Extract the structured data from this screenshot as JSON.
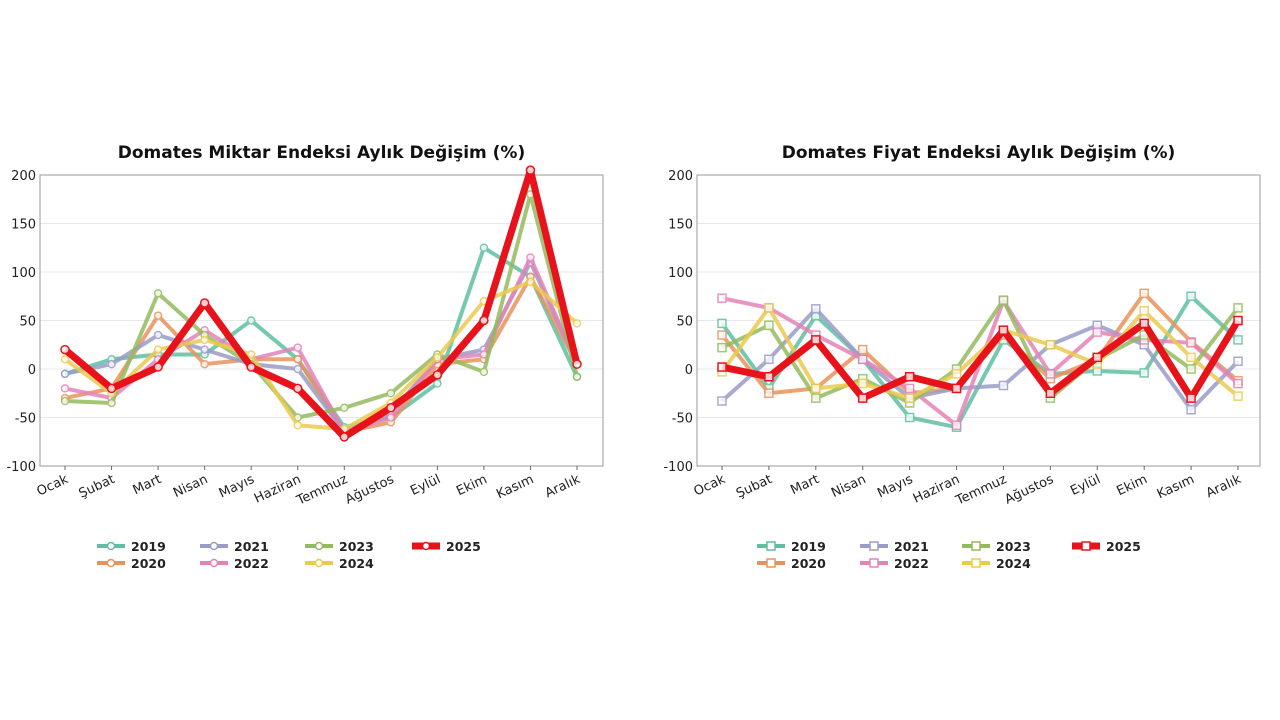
{
  "chart_data": [
    {
      "type": "line",
      "title": "Domates Miktar Endeksi Aylık Değişim (%)",
      "marker": "circle",
      "categories": [
        "Ocak",
        "Şubat",
        "Mart",
        "Nisan",
        "Mayıs",
        "Haziran",
        "Temmuz",
        "Ağustos",
        "Eylül",
        "Ekim",
        "Kasım",
        "Aralık"
      ],
      "ylim": [
        -100,
        200
      ],
      "yticks": [
        -100,
        -50,
        0,
        50,
        100,
        150,
        200
      ],
      "grid": true,
      "legend": "bottom",
      "series": [
        {
          "name": "2019",
          "color": "#5fbfa0",
          "values": [
            -5,
            10,
            15,
            15,
            50,
            10,
            -60,
            -50,
            -15,
            125,
            95,
            -8
          ]
        },
        {
          "name": "2020",
          "color": "#e9935c",
          "values": [
            -30,
            -20,
            55,
            5,
            10,
            10,
            -65,
            -55,
            5,
            10,
            95,
            5
          ]
        },
        {
          "name": "2021",
          "color": "#9a9cc8",
          "values": [
            -5,
            5,
            35,
            20,
            5,
            0,
            -65,
            -45,
            10,
            20,
            110,
            5
          ]
        },
        {
          "name": "2022",
          "color": "#e583b8",
          "values": [
            -20,
            -30,
            10,
            40,
            10,
            22,
            -65,
            -50,
            10,
            15,
            115,
            5
          ]
        },
        {
          "name": "2023",
          "color": "#93bb5e",
          "values": [
            -33,
            -35,
            78,
            35,
            5,
            -50,
            -40,
            -25,
            15,
            -3,
            180,
            -8
          ]
        },
        {
          "name": "2024",
          "color": "#ecca4e",
          "values": [
            10,
            -25,
            20,
            30,
            15,
            -58,
            -62,
            -35,
            12,
            70,
            90,
            47
          ]
        },
        {
          "name": "2025",
          "color": "#e8121b",
          "values": [
            20,
            -20,
            2,
            68,
            2,
            -20,
            -70,
            -40,
            -6,
            50,
            205,
            5
          ]
        }
      ]
    },
    {
      "type": "line",
      "title": "Domates Fiyat Endeksi Aylık Değişim (%)",
      "marker": "square",
      "categories": [
        "Ocak",
        "Şubat",
        "Mart",
        "Nisan",
        "Mayıs",
        "Haziran",
        "Temmuz",
        "Ağustos",
        "Eylül",
        "Ekim",
        "Kasım",
        "Aralık"
      ],
      "ylim": [
        -100,
        200
      ],
      "yticks": [
        -100,
        -50,
        0,
        50,
        100,
        150,
        200
      ],
      "grid": true,
      "legend": "bottom",
      "series": [
        {
          "name": "2019",
          "color": "#5fbfa0",
          "values": [
            47,
            -20,
            55,
            10,
            -50,
            -60,
            30,
            -5,
            -2,
            -4,
            75,
            30
          ]
        },
        {
          "name": "2020",
          "color": "#e9935c",
          "values": [
            35,
            -25,
            -20,
            20,
            -25,
            -20,
            35,
            -10,
            10,
            78,
            28,
            -12
          ]
        },
        {
          "name": "2021",
          "color": "#9a9cc8",
          "values": [
            -33,
            10,
            62,
            10,
            -30,
            -20,
            -17,
            25,
            45,
            25,
            -42,
            8
          ]
        },
        {
          "name": "2022",
          "color": "#e583b8",
          "values": [
            73,
            63,
            35,
            10,
            -20,
            -58,
            70,
            -5,
            38,
            30,
            27,
            -15
          ]
        },
        {
          "name": "2023",
          "color": "#93bb5e",
          "values": [
            22,
            45,
            -30,
            -10,
            -35,
            0,
            71,
            -30,
            10,
            35,
            0,
            63
          ]
        },
        {
          "name": "2024",
          "color": "#ecca4e",
          "values": [
            -3,
            63,
            -20,
            -15,
            -30,
            -5,
            40,
            25,
            5,
            60,
            12,
            -28
          ]
        },
        {
          "name": "2025",
          "color": "#e8121b",
          "values": [
            2,
            -8,
            30,
            -30,
            -8,
            -20,
            40,
            -25,
            12,
            47,
            -30,
            50
          ]
        }
      ]
    }
  ]
}
